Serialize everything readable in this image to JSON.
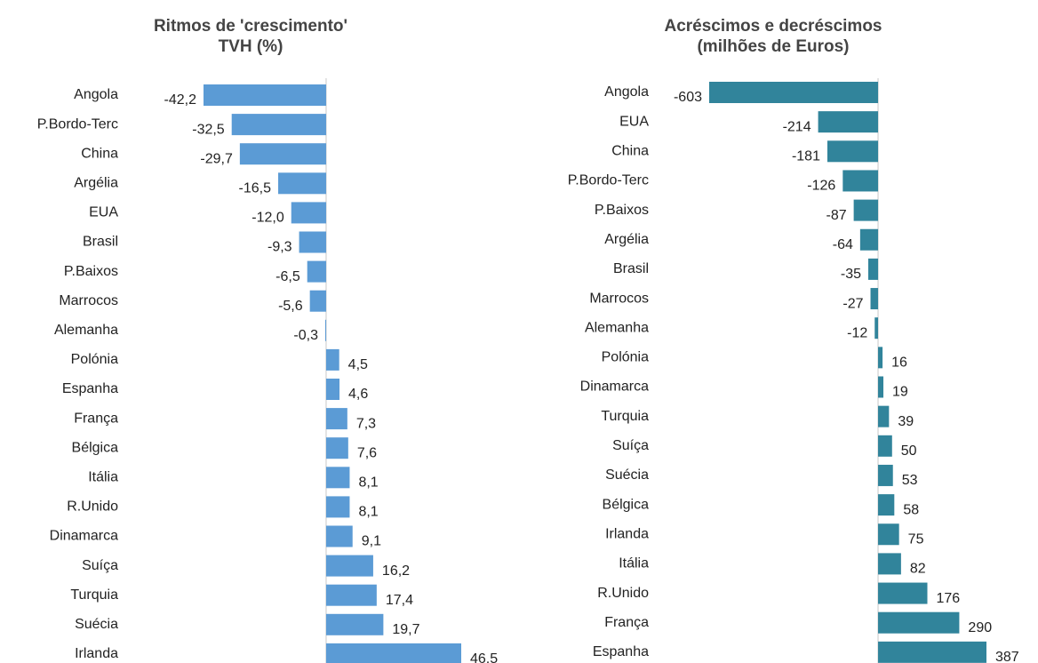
{
  "chart_data": [
    {
      "type": "bar",
      "title": "Ritmos de 'crescimento'",
      "subtitle": "TVH (%)",
      "color": "#5b9bd5",
      "categories": [
        "Angola",
        "P.Bordo-Terc",
        "China",
        "Argélia",
        "EUA",
        "Brasil",
        "P.Baixos",
        "Marrocos",
        "Alemanha",
        "Polónia",
        "Espanha",
        "França",
        "Bélgica",
        "Itália",
        "R.Unido",
        "Dinamarca",
        "Suíça",
        "Turquia",
        "Suécia",
        "Irlanda"
      ],
      "values": [
        -42.2,
        -32.5,
        -29.7,
        -16.5,
        -12.0,
        -9.3,
        -6.5,
        -5.6,
        -0.3,
        4.5,
        4.6,
        7.3,
        7.6,
        8.1,
        8.1,
        9.1,
        16.2,
        17.4,
        19.7,
        46.5
      ],
      "value_labels": [
        "-42,2",
        "-32,5",
        "-29,7",
        "-16,5",
        "-12,0",
        "-9,3",
        "-6,5",
        "-5,6",
        "-0,3",
        "4,5",
        "4,6",
        "7,3",
        "7,6",
        "8,1",
        "8,1",
        "9,1",
        "16,2",
        "17,4",
        "19,7",
        "46,5"
      ]
    },
    {
      "type": "bar",
      "title": "Acréscimos e decréscimos",
      "subtitle": "(milhões de Euros)",
      "color": "#31849b",
      "categories": [
        "Angola",
        "EUA",
        "China",
        "P.Bordo-Terc",
        "P.Baixos",
        "Argélia",
        "Brasil",
        "Marrocos",
        "Alemanha",
        "Polónia",
        "Dinamarca",
        "Turquia",
        "Suíça",
        "Suécia",
        "Bélgica",
        "Irlanda",
        "Itália",
        "R.Unido",
        "França",
        "Espanha"
      ],
      "values": [
        -603,
        -214,
        -181,
        -126,
        -87,
        -64,
        -35,
        -27,
        -12,
        16,
        19,
        39,
        50,
        53,
        58,
        75,
        82,
        176,
        290,
        387
      ]
    }
  ]
}
